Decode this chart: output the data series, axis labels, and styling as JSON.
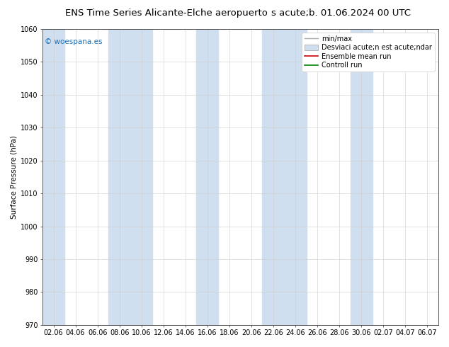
{
  "title_left": "ENS Time Series Alicante-Elche aeropuerto",
  "title_right": "s acute;b. 01.06.2024 00 UTC",
  "ylabel": "Surface Pressure (hPa)",
  "ylim": [
    970,
    1060
  ],
  "yticks": [
    970,
    980,
    990,
    1000,
    1010,
    1020,
    1030,
    1040,
    1050,
    1060
  ],
  "xtick_labels": [
    "02.06",
    "04.06",
    "06.06",
    "08.06",
    "10.06",
    "12.06",
    "14.06",
    "16.06",
    "18.06",
    "20.06",
    "22.06",
    "24.06",
    "26.06",
    "28.06",
    "30.06",
    "02.07",
    "04.07",
    "06.07"
  ],
  "bg_color": "#ffffff",
  "plot_bg_color": "#ffffff",
  "band_color": "#cfdff0",
  "band_positions": [
    0,
    3,
    4,
    7,
    10,
    11,
    14,
    17
  ],
  "watermark": "© woespana.es",
  "watermark_color": "#1a6eb5",
  "grid_color": "#cccccc",
  "title_fontsize": 9.5,
  "tick_fontsize": 7,
  "legend_fontsize": 7
}
